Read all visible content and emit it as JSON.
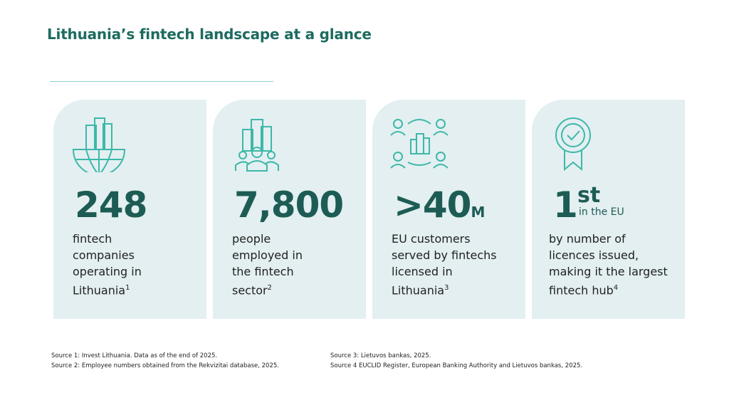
{
  "header": {
    "title": "Lithuania’s fintech landscape at a glance"
  },
  "cards": [
    {
      "stat": "248",
      "description": "fintech companies operating in Lithuania",
      "footnote": "1"
    },
    {
      "stat": "7,800",
      "description": "people employed in the fintech sector",
      "footnote": "2"
    },
    {
      "stat": ">40",
      "unit": "M",
      "description": "EU customers served by fintechs licensed in Lithuania",
      "footnote": "3"
    },
    {
      "stat": "1",
      "ordinal": "st",
      "qualifier": "in the EU",
      "description": "by number of licences issued, making it the largest fintech hub",
      "footnote": "4"
    }
  ],
  "sources": [
    "Source 1: Invest Lithuania. Data as of the end of 2025.",
    "Source 2: Employee numbers obtained from the Rekvizitai database, 2025.",
    "Source 3: Lietuvos bankas, 2025.",
    "Source 4 EUCLID Register, European Banking Authority and Lietuvos bankas, 2025."
  ]
}
